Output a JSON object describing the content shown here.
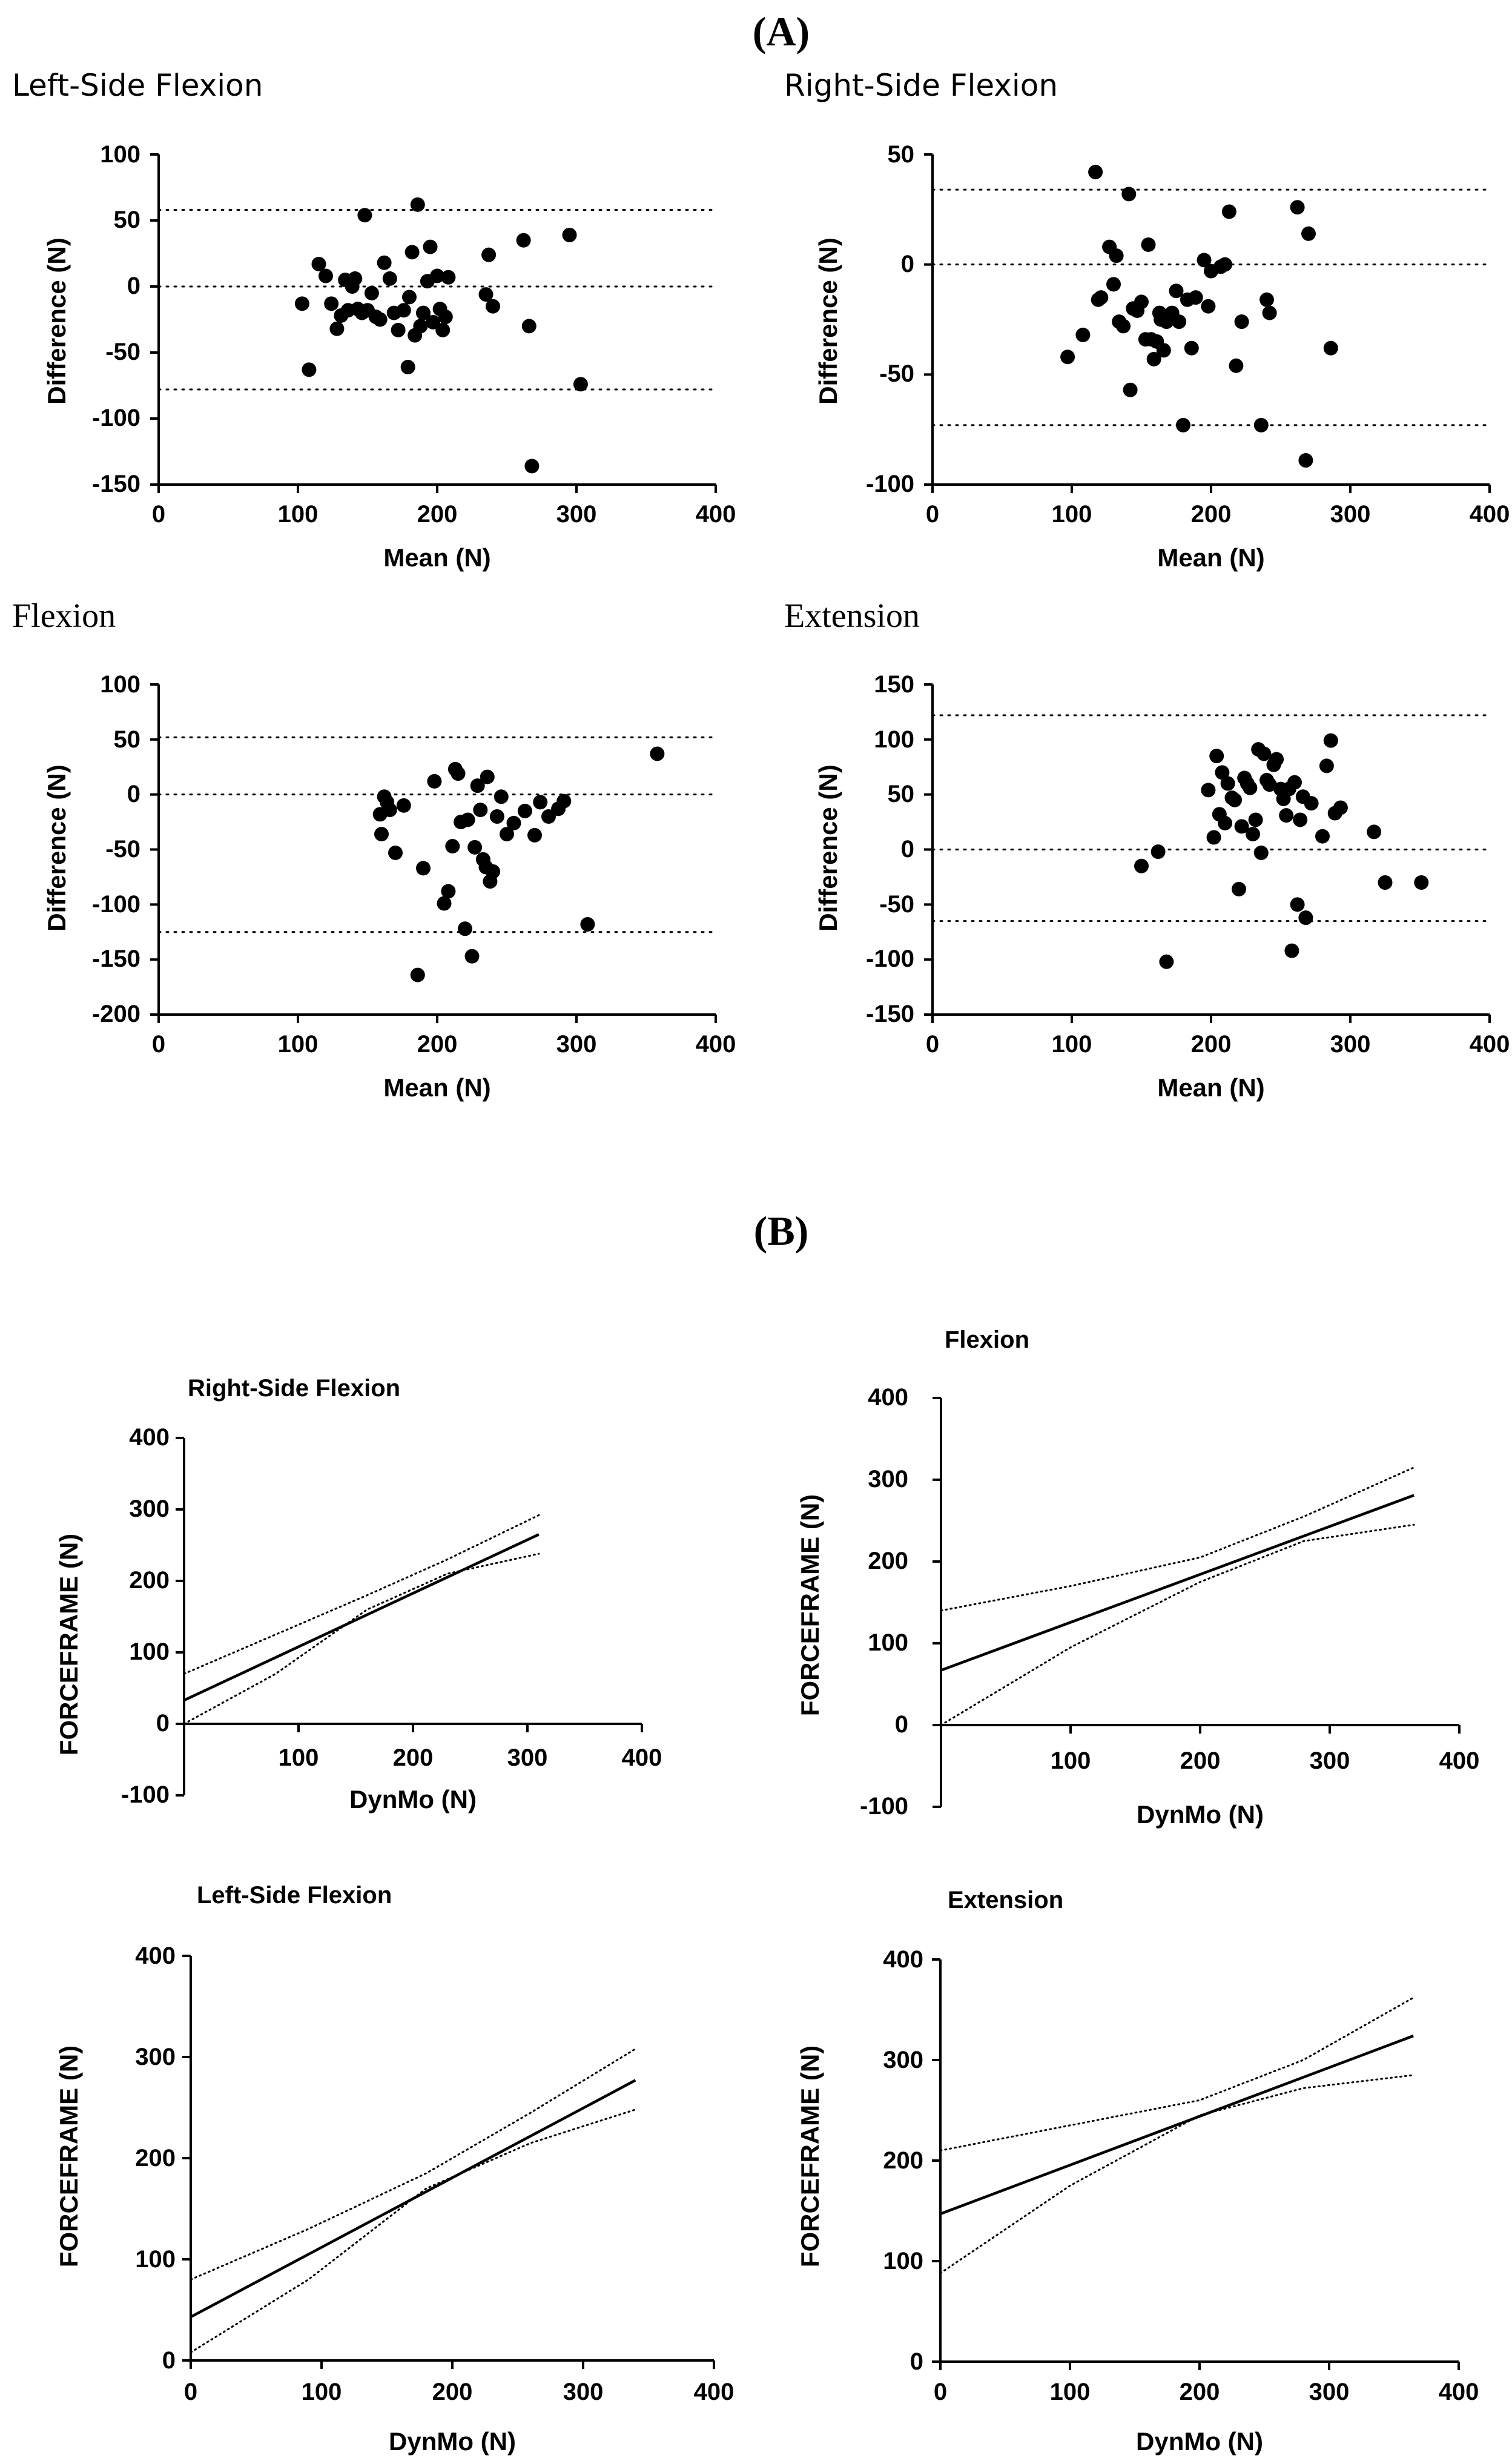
{
  "sections": [
    "(A)",
    "(B)"
  ],
  "chart_data": [
    {
      "type": "scatter",
      "title": "Left-Side Flexion",
      "xlabel": "Mean (N)",
      "ylabel": "Difference (N)",
      "xlim": [
        0,
        400
      ],
      "ylim": [
        -150,
        100
      ],
      "xticks": [
        "0",
        "100",
        "200",
        "300",
        "400"
      ],
      "yticks": [
        "100",
        "50",
        "0",
        "-50",
        "-100",
        "-150"
      ],
      "reference_lines": [
        58,
        0,
        -78
      ],
      "x": [
        103,
        108,
        115,
        120,
        124,
        128,
        131,
        134,
        136,
        139,
        141,
        143,
        146,
        148,
        150,
        153,
        156,
        159,
        162,
        166,
        169,
        172,
        176,
        179,
        180,
        182,
        184,
        186,
        188,
        190,
        193,
        195,
        197,
        200,
        202,
        204,
        206,
        208,
        235,
        237,
        240,
        262,
        266,
        268,
        295,
        303
      ],
      "y": [
        -13,
        -63,
        17,
        8,
        -13,
        -32,
        -22,
        5,
        -18,
        0,
        6,
        -17,
        -20,
        54,
        -18,
        -5,
        -23,
        -25,
        18,
        6,
        -20,
        -33,
        -18,
        -61,
        -8,
        26,
        -37,
        62,
        -30,
        -20,
        4,
        30,
        -27,
        8,
        -17,
        -33,
        -23,
        7,
        -6,
        24,
        -15,
        35,
        -30,
        -136,
        39,
        -74
      ]
    },
    {
      "type": "scatter",
      "title": "Right-Side Flexion",
      "xlabel": "Mean (N)",
      "ylabel": "Difference (N)",
      "xlim": [
        0,
        400
      ],
      "ylim": [
        -100,
        50
      ],
      "xticks": [
        "0",
        "100",
        "200",
        "300",
        "400"
      ],
      "yticks": [
        "50",
        "0",
        "-50",
        "-100"
      ],
      "reference_lines": [
        34,
        0,
        -73
      ],
      "x": [
        97,
        108,
        117,
        119,
        121,
        127,
        130,
        132,
        134,
        137,
        141,
        142,
        144,
        147,
        150,
        153,
        155,
        157,
        159,
        161,
        163,
        164,
        166,
        168,
        172,
        175,
        177,
        180,
        183,
        186,
        189,
        195,
        198,
        200,
        207,
        210,
        213,
        218,
        222,
        236,
        240,
        242,
        262,
        268,
        270,
        286
      ],
      "y": [
        -42,
        -32,
        42,
        -16,
        -15,
        8,
        -9,
        4,
        -26,
        -28,
        32,
        -57,
        -20,
        -21,
        -17,
        -34,
        9,
        -34,
        -43,
        -35,
        -22,
        -25,
        -39,
        -26,
        -22,
        -12,
        -26,
        -73,
        -16,
        -38,
        -15,
        2,
        -19,
        -3,
        -1,
        0,
        24,
        -46,
        -26,
        -73,
        -16,
        -22,
        26,
        -89,
        14,
        -38
      ]
    },
    {
      "type": "scatter",
      "title": "Flexion",
      "xlabel": "Mean (N)",
      "ylabel": "Difference (N)",
      "xlim": [
        0,
        400
      ],
      "ylim": [
        -200,
        100
      ],
      "xticks": [
        "0",
        "100",
        "200",
        "300",
        "400"
      ],
      "yticks": [
        "100",
        "50",
        "0",
        "-50",
        "-100",
        "-150",
        "-200"
      ],
      "reference_lines": [
        52,
        0,
        -125
      ],
      "x": [
        159,
        160,
        162,
        164,
        166,
        170,
        176,
        186,
        190,
        198,
        205,
        208,
        211,
        213,
        215,
        217,
        220,
        222,
        225,
        227,
        229,
        231,
        233,
        235,
        236,
        238,
        240,
        243,
        246,
        250,
        255,
        263,
        270,
        274,
        280,
        287,
        291,
        308,
        358
      ],
      "y": [
        -18,
        -36,
        -2,
        -7,
        -14,
        -53,
        -10,
        -164,
        -67,
        12,
        -99,
        -88,
        -47,
        23,
        19,
        -25,
        -122,
        -23,
        -147,
        -48,
        8,
        -14,
        -59,
        -66,
        16,
        -79,
        -70,
        -20,
        -2,
        -36,
        -26,
        -15,
        -37,
        -7,
        -20,
        -13,
        -6,
        -118,
        37
      ]
    },
    {
      "type": "scatter",
      "title": "Extension",
      "xlabel": "Mean (N)",
      "ylabel": "Difference (N)",
      "xlim": [
        0,
        400
      ],
      "ylim": [
        -150,
        150
      ],
      "xticks": [
        "0",
        "100",
        "200",
        "300",
        "400"
      ],
      "yticks": [
        "150",
        "100",
        "50",
        "0",
        "-50",
        "-100",
        "-150"
      ],
      "reference_lines": [
        122,
        0,
        -65
      ],
      "x": [
        150,
        162,
        168,
        198,
        202,
        204,
        206,
        208,
        210,
        212,
        215,
        217,
        220,
        222,
        224,
        226,
        228,
        230,
        232,
        234,
        236,
        238,
        240,
        242,
        245,
        247,
        250,
        252,
        254,
        256,
        258,
        260,
        262,
        264,
        266,
        268,
        272,
        280,
        283,
        286,
        289,
        293,
        317,
        325,
        351
      ],
      "y": [
        -15,
        -2,
        -102,
        54,
        11,
        85,
        32,
        70,
        24,
        60,
        47,
        45,
        -36,
        21,
        65,
        60,
        56,
        14,
        27,
        91,
        -3,
        87,
        63,
        59,
        77,
        82,
        55,
        46,
        31,
        55,
        -92,
        61,
        -50,
        27,
        48,
        -62,
        42,
        12,
        76,
        99,
        33,
        38,
        16,
        -30,
        -30
      ]
    },
    {
      "type": "line",
      "title": "Right-Side Flexion",
      "xlabel": "DynMo (N)",
      "ylabel": "FORCEFRAME (N)",
      "xlim": [
        0,
        400
      ],
      "ylim": [
        -100,
        400
      ],
      "xticks": [
        "100",
        "200",
        "300",
        "400"
      ],
      "yticks": [
        "400",
        "300",
        "200",
        "100",
        "0",
        "-100"
      ],
      "series": [
        {
          "style": "solid",
          "x": [
            0,
            310
          ],
          "y": [
            33,
            265
          ]
        },
        {
          "style": "dotted",
          "x": [
            0,
            80,
            160,
            230,
            310
          ],
          "y": [
            70,
            125,
            180,
            230,
            292
          ]
        },
        {
          "style": "dotted",
          "x": [
            0,
            80,
            160,
            230,
            310
          ],
          "y": [
            0,
            70,
            160,
            210,
            238
          ]
        }
      ]
    },
    {
      "type": "line",
      "title": "Flexion",
      "xlabel": "DynMo (N)",
      "ylabel": "FORCEFRAME (N)",
      "xlim": [
        0,
        400
      ],
      "ylim": [
        -100,
        400
      ],
      "xticks": [
        "100",
        "200",
        "300",
        "400"
      ],
      "yticks": [
        "400",
        "300",
        "200",
        "100",
        "0",
        "-100"
      ],
      "series": [
        {
          "style": "solid",
          "x": [
            0,
            365
          ],
          "y": [
            67,
            281
          ]
        },
        {
          "style": "dotted",
          "x": [
            0,
            100,
            200,
            280,
            365
          ],
          "y": [
            140,
            170,
            205,
            255,
            315
          ]
        },
        {
          "style": "dotted",
          "x": [
            0,
            100,
            200,
            280,
            365
          ],
          "y": [
            0,
            95,
            175,
            225,
            245
          ]
        }
      ]
    },
    {
      "type": "line",
      "title": "Left-Side Flexion",
      "xlabel": "DynMo (N)",
      "ylabel": "FORCEFRAME (N)",
      "xlim": [
        0,
        400
      ],
      "ylim": [
        0,
        400
      ],
      "xticks": [
        "0",
        "100",
        "200",
        "300",
        "400"
      ],
      "yticks": [
        "400",
        "300",
        "200",
        "100",
        "0"
      ],
      "series": [
        {
          "style": "solid",
          "x": [
            0,
            340
          ],
          "y": [
            43,
            277
          ]
        },
        {
          "style": "dotted",
          "x": [
            0,
            90,
            180,
            260,
            340
          ],
          "y": [
            80,
            130,
            185,
            245,
            308
          ]
        },
        {
          "style": "dotted",
          "x": [
            0,
            90,
            180,
            260,
            340
          ],
          "y": [
            8,
            80,
            170,
            215,
            248
          ]
        }
      ]
    },
    {
      "type": "line",
      "title": "Extension",
      "xlabel": "DynMo (N)",
      "ylabel": "FORCEFRAME (N)",
      "xlim": [
        0,
        400
      ],
      "ylim": [
        0,
        400
      ],
      "xticks": [
        "0",
        "100",
        "200",
        "300",
        "400"
      ],
      "yticks": [
        "400",
        "300",
        "200",
        "100",
        "0"
      ],
      "series": [
        {
          "style": "solid",
          "x": [
            0,
            365
          ],
          "y": [
            147,
            324
          ]
        },
        {
          "style": "dotted",
          "x": [
            0,
            100,
            200,
            280,
            365
          ],
          "y": [
            210,
            235,
            260,
            300,
            362
          ]
        },
        {
          "style": "dotted",
          "x": [
            0,
            100,
            200,
            280,
            365
          ],
          "y": [
            88,
            175,
            245,
            272,
            285
          ]
        }
      ]
    }
  ]
}
